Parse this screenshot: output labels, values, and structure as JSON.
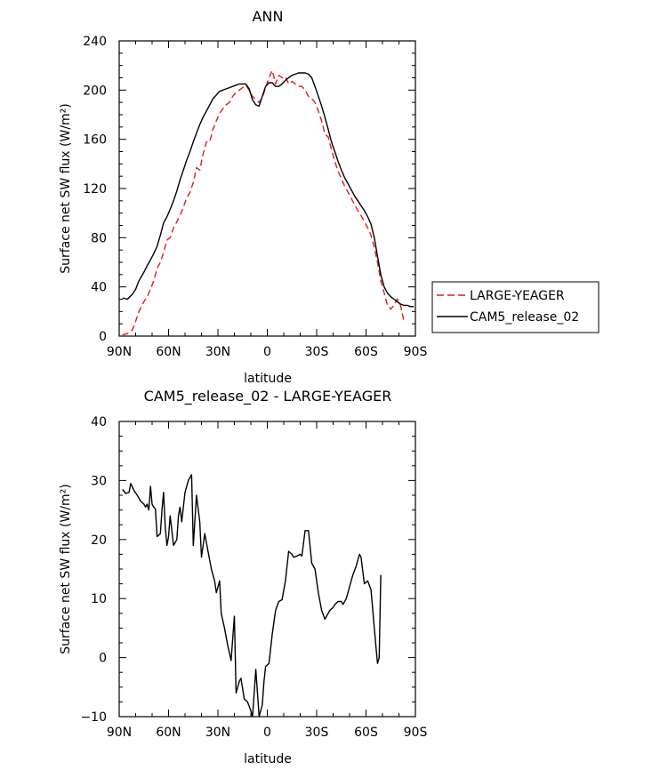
{
  "chart_data": [
    {
      "type": "line",
      "title": "ANN",
      "xlabel": "latitude",
      "ylabel": "Surface net SW flux (W/m²)",
      "xlim": [
        90,
        -90
      ],
      "ylim": [
        0,
        240
      ],
      "x_ticks": [
        90,
        60,
        30,
        0,
        -30,
        -60,
        -90
      ],
      "x_tick_labels": [
        "90N",
        "60N",
        "30N",
        "0",
        "30S",
        "60S",
        "90S"
      ],
      "y_ticks": [
        0,
        40,
        80,
        120,
        160,
        200,
        240
      ],
      "y_tick_labels": [
        "0",
        "40",
        "80",
        "120",
        "160",
        "200",
        "240"
      ],
      "grid": false,
      "legend_position": "right",
      "series": [
        {
          "name": "LARGE-YEAGER",
          "color": "#e31a1c",
          "dash": "dashed",
          "points": [
            [
              88,
              1
            ],
            [
              85,
              2
            ],
            [
              82,
              5
            ],
            [
              80,
              12
            ],
            [
              78,
              20
            ],
            [
              75,
              28
            ],
            [
              73,
              32
            ],
            [
              71,
              38
            ],
            [
              69,
              45
            ],
            [
              67,
              55
            ],
            [
              65,
              60
            ],
            [
              63,
              68
            ],
            [
              61,
              78
            ],
            [
              59,
              80
            ],
            [
              57,
              88
            ],
            [
              55,
              93
            ],
            [
              53,
              98
            ],
            [
              51,
              105
            ],
            [
              49,
              112
            ],
            [
              47,
              117
            ],
            [
              45,
              125
            ],
            [
              43,
              137
            ],
            [
              41,
              135
            ],
            [
              39,
              148
            ],
            [
              37,
              158
            ],
            [
              35,
              158
            ],
            [
              33,
              168
            ],
            [
              31,
              175
            ],
            [
              29,
              181
            ],
            [
              27,
              185
            ],
            [
              25,
              188
            ],
            [
              23,
              190
            ],
            [
              21,
              195
            ],
            [
              19,
              198
            ],
            [
              17,
              200
            ],
            [
              15,
              202
            ],
            [
              13,
              204
            ],
            [
              11,
              200
            ],
            [
              9,
              195
            ],
            [
              7,
              192
            ],
            [
              5,
              190
            ],
            [
              3,
              194
            ],
            [
              1,
              202
            ],
            [
              -1,
              210
            ],
            [
              -3,
              216
            ],
            [
              -5,
              205
            ],
            [
              -7,
              212
            ],
            [
              -9,
              210
            ],
            [
              -11,
              211
            ],
            [
              -13,
              205
            ],
            [
              -15,
              207
            ],
            [
              -17,
              205
            ],
            [
              -19,
              203
            ],
            [
              -21,
              203
            ],
            [
              -23,
              200
            ],
            [
              -25,
              195
            ],
            [
              -27,
              193
            ],
            [
              -29,
              190
            ],
            [
              -31,
              183
            ],
            [
              -33,
              175
            ],
            [
              -35,
              164
            ],
            [
              -37,
              162
            ],
            [
              -39,
              152
            ],
            [
              -41,
              142
            ],
            [
              -43,
              134
            ],
            [
              -45,
              128
            ],
            [
              -47,
              122
            ],
            [
              -49,
              117
            ],
            [
              -51,
              112
            ],
            [
              -53,
              107
            ],
            [
              -55,
              102
            ],
            [
              -57,
              98
            ],
            [
              -59,
              93
            ],
            [
              -61,
              88
            ],
            [
              -63,
              82
            ],
            [
              -65,
              72
            ],
            [
              -67,
              60
            ],
            [
              -69,
              45
            ],
            [
              -71,
              35
            ],
            [
              -73,
              25
            ],
            [
              -75,
              22
            ],
            [
              -77,
              25
            ],
            [
              -79,
              30
            ],
            [
              -81,
              25
            ],
            [
              -83,
              12
            ]
          ]
        },
        {
          "name": "CAM5_release_02",
          "color": "#000000",
          "dash": "solid",
          "points": [
            [
              88,
              31
            ],
            [
              85,
              30
            ],
            [
              82,
              34
            ],
            [
              80,
              38
            ],
            [
              78,
              45
            ],
            [
              75,
              52
            ],
            [
              73,
              57
            ],
            [
              71,
              62
            ],
            [
              69,
              67
            ],
            [
              67,
              73
            ],
            [
              65,
              82
            ],
            [
              63,
              92
            ],
            [
              61,
              97
            ],
            [
              59,
              103
            ],
            [
              57,
              110
            ],
            [
              55,
              118
            ],
            [
              53,
              127
            ],
            [
              51,
              135
            ],
            [
              49,
              143
            ],
            [
              47,
              150
            ],
            [
              45,
              158
            ],
            [
              43,
              165
            ],
            [
              41,
              172
            ],
            [
              39,
              178
            ],
            [
              37,
              183
            ],
            [
              35,
              188
            ],
            [
              33,
              193
            ],
            [
              31,
              196
            ],
            [
              29,
              199
            ],
            [
              27,
              200
            ],
            [
              25,
              201
            ],
            [
              23,
              202
            ],
            [
              21,
              203
            ],
            [
              19,
              204
            ],
            [
              17,
              205
            ],
            [
              15,
              205
            ],
            [
              13,
              205
            ],
            [
              11,
              201
            ],
            [
              9,
              192
            ],
            [
              7,
              188
            ],
            [
              5,
              187
            ],
            [
              3,
              195
            ],
            [
              1,
              203
            ],
            [
              -1,
              206
            ],
            [
              -3,
              206
            ],
            [
              -5,
              203
            ],
            [
              -7,
              203
            ],
            [
              -9,
              205
            ],
            [
              -11,
              208
            ],
            [
              -13,
              210
            ],
            [
              -15,
              212
            ],
            [
              -17,
              213
            ],
            [
              -19,
              214
            ],
            [
              -21,
              214
            ],
            [
              -23,
              214
            ],
            [
              -25,
              213
            ],
            [
              -27,
              210
            ],
            [
              -29,
              203
            ],
            [
              -31,
              195
            ],
            [
              -33,
              187
            ],
            [
              -35,
              178
            ],
            [
              -37,
              168
            ],
            [
              -39,
              158
            ],
            [
              -41,
              150
            ],
            [
              -43,
              142
            ],
            [
              -45,
              135
            ],
            [
              -47,
              129
            ],
            [
              -49,
              124
            ],
            [
              -51,
              119
            ],
            [
              -53,
              114
            ],
            [
              -55,
              110
            ],
            [
              -57,
              106
            ],
            [
              -59,
              102
            ],
            [
              -61,
              97
            ],
            [
              -63,
              91
            ],
            [
              -65,
              80
            ],
            [
              -67,
              65
            ],
            [
              -69,
              50
            ],
            [
              -71,
              40
            ],
            [
              -73,
              35
            ],
            [
              -75,
              32
            ],
            [
              -77,
              30
            ],
            [
              -79,
              28
            ],
            [
              -81,
              26
            ],
            [
              -83,
              25
            ],
            [
              -85,
              25
            ],
            [
              -87,
              24
            ],
            [
              -89,
              24
            ]
          ]
        }
      ]
    },
    {
      "type": "line",
      "title": "CAM5_release_02 - LARGE-YEAGER",
      "xlabel": "latitude",
      "ylabel": "Surface net SW flux (W/m²)",
      "xlim": [
        90,
        -90
      ],
      "ylim": [
        -10,
        40
      ],
      "x_ticks": [
        90,
        60,
        30,
        0,
        -30,
        -60,
        -90
      ],
      "x_tick_labels": [
        "90N",
        "60N",
        "30N",
        "0",
        "30S",
        "60S",
        "90S"
      ],
      "y_ticks": [
        -10,
        0,
        10,
        20,
        30,
        40
      ],
      "y_tick_labels": [
        "−10",
        "0",
        "10",
        "20",
        "30",
        "40"
      ],
      "grid": false,
      "series": [
        {
          "color": "#000000",
          "dash": "solid",
          "points": [
            [
              88,
              28.5
            ],
            [
              86,
              27.8
            ],
            [
              84,
              28
            ],
            [
              83,
              29.5
            ],
            [
              81,
              28.3
            ],
            [
              79,
              27.5
            ],
            [
              77,
              26.5
            ],
            [
              75,
              26
            ],
            [
              74,
              25.5
            ],
            [
              73,
              26
            ],
            [
              72,
              25
            ],
            [
              71,
              29
            ],
            [
              70,
              26
            ],
            [
              69,
              25.5
            ],
            [
              68,
              25.2
            ],
            [
              67,
              20.5
            ],
            [
              65,
              21
            ],
            [
              64,
              25
            ],
            [
              63,
              28
            ],
            [
              62,
              22
            ],
            [
              61,
              19
            ],
            [
              60,
              20.5
            ],
            [
              59,
              24
            ],
            [
              57,
              19
            ],
            [
              55,
              20
            ],
            [
              54,
              24
            ],
            [
              53,
              25.5
            ],
            [
              52,
              23
            ],
            [
              50,
              28
            ],
            [
              48,
              30
            ],
            [
              46,
              31
            ],
            [
              45,
              19
            ],
            [
              43,
              27.5
            ],
            [
              41,
              23
            ],
            [
              40,
              17
            ],
            [
              38,
              21
            ],
            [
              36,
              18
            ],
            [
              34,
              15
            ],
            [
              32,
              13
            ],
            [
              31,
              11
            ],
            [
              29,
              13
            ],
            [
              28,
              7.5
            ],
            [
              26,
              5
            ],
            [
              24,
              2
            ],
            [
              22,
              -0.5
            ],
            [
              20,
              7
            ],
            [
              19,
              -6
            ],
            [
              17,
              -4
            ],
            [
              16,
              -3.5
            ],
            [
              14,
              -7
            ],
            [
              12,
              -7.5
            ],
            [
              10,
              -9
            ],
            [
              9,
              -10
            ],
            [
              7,
              -2
            ],
            [
              5,
              -10
            ],
            [
              3,
              -8
            ],
            [
              2,
              -4
            ],
            [
              1,
              -1.5
            ],
            [
              -1,
              -1
            ],
            [
              -3,
              4
            ],
            [
              -5,
              8
            ],
            [
              -7,
              9.5
            ],
            [
              -9,
              9.8
            ],
            [
              -11,
              13
            ],
            [
              -13,
              18
            ],
            [
              -15,
              17.5
            ],
            [
              -16,
              17
            ],
            [
              -18,
              17.2
            ],
            [
              -20,
              17.5
            ],
            [
              -21,
              17.2
            ],
            [
              -23,
              21.5
            ],
            [
              -25,
              21.5
            ],
            [
              -27,
              16
            ],
            [
              -29,
              15
            ],
            [
              -31,
              11
            ],
            [
              -33,
              8
            ],
            [
              -35,
              6.5
            ],
            [
              -36,
              7
            ],
            [
              -38,
              8
            ],
            [
              -40,
              8.5
            ],
            [
              -41,
              9
            ],
            [
              -43,
              9.5
            ],
            [
              -45,
              9.5
            ],
            [
              -46,
              9
            ],
            [
              -48,
              10
            ],
            [
              -50,
              12
            ],
            [
              -52,
              14
            ],
            [
              -54,
              15.5
            ],
            [
              -56,
              17.5
            ],
            [
              -57,
              17
            ],
            [
              -59,
              12.5
            ],
            [
              -61,
              13
            ],
            [
              -63,
              11.5
            ],
            [
              -65,
              5
            ],
            [
              -67,
              -1
            ],
            [
              -68,
              0
            ],
            [
              -69,
              14
            ]
          ]
        }
      ]
    }
  ]
}
